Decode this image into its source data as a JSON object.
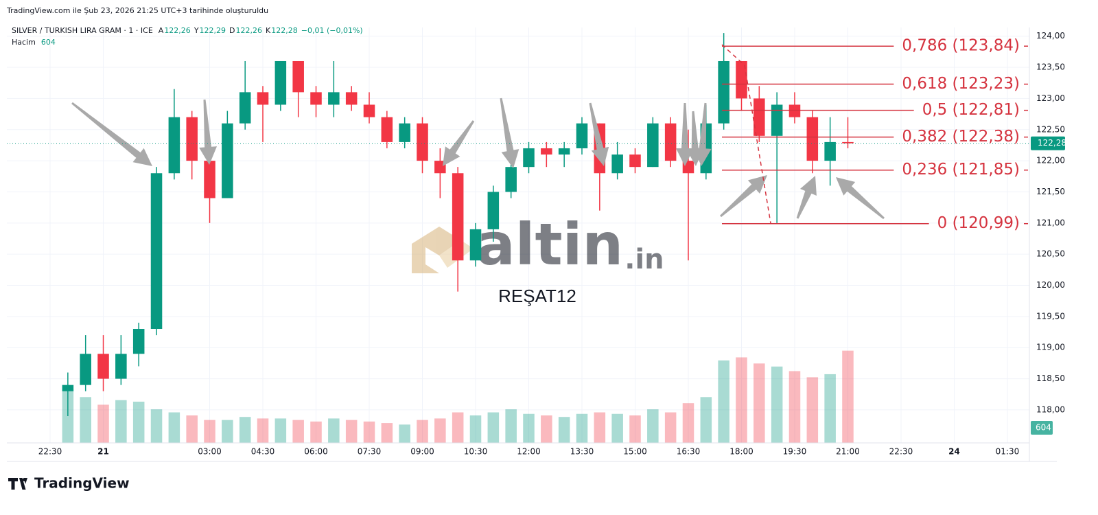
{
  "header": {
    "caption": "TradingView.com ile Şub 23, 2026 21:25 UTC+3 tarihinde oluşturuldu"
  },
  "chart_data": {
    "type": "candlestick",
    "title": "SILVER / TURKISH LIRA GRAM · 1 · ICE",
    "ohlc_legend": [
      {
        "label": "A",
        "value": "122,26"
      },
      {
        "label": "Y",
        "value": "122,29"
      },
      {
        "label": "D",
        "value": "122,26"
      },
      {
        "label": "K",
        "value": "122,28"
      }
    ],
    "change": "−0,01 (−0,01%)",
    "volume_legend": {
      "label": "Hacim",
      "value": 604
    },
    "up_color": "#089981",
    "down_color": "#f23645",
    "x": [
      23.0,
      23.5,
      24.0,
      24.5,
      25.0,
      25.5,
      26.0,
      26.5,
      27.0,
      27.5,
      28.0,
      28.5,
      29.0,
      29.5,
      30.0,
      30.5,
      31.0,
      31.5,
      32.0,
      32.5,
      33.0,
      33.5,
      34.0,
      34.5,
      35.0,
      35.5,
      36.0,
      36.5,
      37.0,
      37.5,
      38.0,
      38.5,
      39.0,
      39.5,
      40.0,
      40.5,
      41.0,
      41.5,
      42.0,
      42.5,
      43.0,
      43.5,
      44.0,
      44.5,
      45.0
    ],
    "open": [
      118.3,
      118.4,
      118.9,
      118.5,
      118.9,
      119.3,
      121.8,
      122.7,
      122.0,
      121.4,
      122.6,
      123.1,
      122.9,
      123.6,
      123.1,
      122.9,
      123.1,
      122.9,
      122.7,
      122.3,
      122.6,
      122.0,
      121.8,
      120.4,
      120.9,
      121.5,
      121.9,
      122.2,
      122.1,
      122.2,
      122.6,
      121.8,
      122.1,
      121.9,
      122.6,
      122.0,
      121.8,
      122.6,
      123.6,
      123.0,
      122.4,
      122.9,
      122.7,
      122.0,
      122.3
    ],
    "high": [
      118.6,
      119.2,
      119.2,
      119.2,
      119.4,
      121.9,
      123.15,
      122.8,
      122.2,
      122.8,
      123.6,
      123.2,
      123.6,
      123.6,
      123.2,
      123.6,
      123.2,
      123.1,
      122.8,
      122.7,
      122.7,
      122.2,
      121.9,
      121.0,
      121.6,
      122.2,
      122.3,
      122.3,
      122.3,
      122.7,
      122.6,
      122.3,
      122.2,
      122.7,
      122.7,
      122.5,
      122.9,
      124.05,
      123.6,
      123.2,
      123.1,
      123.1,
      122.8,
      122.7,
      122.7
    ],
    "low": [
      117.9,
      118.3,
      118.3,
      118.4,
      118.7,
      119.2,
      121.7,
      121.7,
      121.0,
      121.4,
      122.5,
      122.3,
      122.8,
      122.7,
      122.7,
      122.7,
      122.8,
      122.6,
      122.2,
      122.2,
      121.8,
      121.4,
      119.9,
      120.3,
      120.7,
      121.4,
      121.8,
      121.9,
      121.9,
      122.1,
      121.2,
      121.7,
      121.8,
      121.9,
      121.9,
      120.4,
      121.7,
      122.5,
      122.8,
      122.3,
      121.0,
      122.6,
      121.8,
      121.6,
      122.2
    ],
    "close": [
      118.4,
      118.9,
      118.5,
      118.9,
      119.3,
      121.8,
      122.7,
      122.0,
      121.4,
      122.6,
      123.1,
      122.9,
      123.6,
      123.1,
      122.9,
      123.1,
      122.9,
      122.7,
      122.3,
      122.6,
      122.0,
      121.8,
      120.4,
      120.9,
      121.5,
      121.9,
      122.2,
      122.1,
      122.2,
      122.6,
      121.8,
      122.1,
      121.9,
      122.6,
      122.0,
      121.8,
      122.6,
      123.6,
      123.0,
      122.4,
      122.9,
      122.7,
      122.0,
      122.3,
      122.28
    ],
    "volume": {
      "axis": "y2",
      "values": [
        350,
        300,
        250,
        280,
        270,
        220,
        200,
        180,
        150,
        150,
        170,
        160,
        160,
        150,
        140,
        160,
        150,
        140,
        130,
        120,
        150,
        160,
        200,
        180,
        200,
        220,
        190,
        180,
        170,
        190,
        200,
        190,
        180,
        220,
        200,
        260,
        300,
        540,
        560,
        520,
        500,
        470,
        430,
        450,
        604
      ]
    },
    "xlim": [
      21.28,
      50.12
    ],
    "xticks": [
      {
        "value": 22.5,
        "label": "22:30"
      },
      {
        "value": 24,
        "label": "21"
      },
      {
        "value": 27,
        "label": "03:00"
      },
      {
        "value": 28.5,
        "label": "04:30"
      },
      {
        "value": 30,
        "label": "06:00"
      },
      {
        "value": 31.5,
        "label": "07:30"
      },
      {
        "value": 33,
        "label": "09:00"
      },
      {
        "value": 34.5,
        "label": "10:30"
      },
      {
        "value": 36,
        "label": "12:00"
      },
      {
        "value": 37.5,
        "label": "13:30"
      },
      {
        "value": 39,
        "label": "15:00"
      },
      {
        "value": 40.5,
        "label": "16:30"
      },
      {
        "value": 42,
        "label": "18:00"
      },
      {
        "value": 43.5,
        "label": "19:30"
      },
      {
        "value": 45,
        "label": "21:00"
      },
      {
        "value": 46.5,
        "label": "22:30"
      },
      {
        "value": 48,
        "label": "24"
      },
      {
        "value": 49.5,
        "label": "01:30"
      }
    ],
    "ylim": [
      117.47,
      124.14
    ],
    "yticks": [
      {
        "value": 118,
        "label": "118,00"
      },
      {
        "value": 118.5,
        "label": "118,50"
      },
      {
        "value": 119,
        "label": "119,00"
      },
      {
        "value": 119.5,
        "label": "119,50"
      },
      {
        "value": 120,
        "label": "120,00"
      },
      {
        "value": 120.5,
        "label": "120,50"
      },
      {
        "value": 121,
        "label": "121,00"
      },
      {
        "value": 121.5,
        "label": "121,50"
      },
      {
        "value": 122,
        "label": "122,00"
      },
      {
        "value": 122.5,
        "label": "122,50"
      },
      {
        "value": 123,
        "label": "123,00"
      },
      {
        "value": 123.5,
        "label": "123,50"
      },
      {
        "value": 124,
        "label": "124,00"
      }
    ],
    "y2lim": [
      0,
      2720
    ],
    "grid": true,
    "last_price": {
      "value": 122.28,
      "label": "122,28"
    },
    "fib_color": "#d5333f",
    "fib_levels": [
      {
        "value": 123.84,
        "label": "0,786 (123,84)"
      },
      {
        "value": 123.23,
        "label": "0,618 (123,23)"
      },
      {
        "value": 122.81,
        "label": "0,5 (122,81)"
      },
      {
        "value": 122.38,
        "label": "0,382 (122,38)"
      },
      {
        "value": 121.85,
        "label": "0,236 (121,85)"
      },
      {
        "value": 120.99,
        "label": "0 (120,99)"
      }
    ]
  },
  "watermark": {
    "brand": "altin",
    "suffix": ".in",
    "user": "REŞAT12"
  },
  "footer": {
    "brand": "TradingView"
  }
}
